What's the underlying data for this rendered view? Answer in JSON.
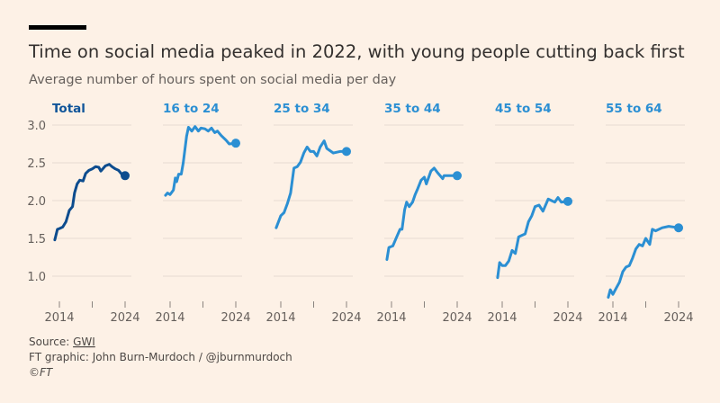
{
  "title": "Time on social media peaked in 2022, with young people cutting back first",
  "subtitle": "Average number of hours spent on social media per day",
  "footer": {
    "source_label": "Source: ",
    "source_link": "GWI",
    "credit": "FT graphic: John Burn-Murdoch / @jburnmurdoch",
    "copyright": "©FT"
  },
  "colors": {
    "background": "#fdf1e6",
    "total": "#0d4c8e",
    "age_groups": "#2b8fd3",
    "grid": "#e6dcd2",
    "title_bar": "#000000"
  },
  "chart_data": {
    "type": "line",
    "layout": "small-multiples",
    "ylim": [
      0.7,
      3.0
    ],
    "yticks": [
      "1.0",
      "1.5",
      "2.0",
      "2.5",
      "3.0"
    ],
    "ytick_values": [
      1.0,
      1.5,
      2.0,
      2.5,
      3.0
    ],
    "xticks": [
      "2014",
      "2024"
    ],
    "xtick_values": [
      2014,
      2019,
      2024
    ],
    "grid": true,
    "end_marker": "dot",
    "series": [
      {
        "name": "Total",
        "color": "#0d4c8e",
        "points": [
          [
            2013.3,
            1.48
          ],
          [
            2013.7,
            1.62
          ],
          [
            2014,
            1.63
          ],
          [
            2014.5,
            1.65
          ],
          [
            2015,
            1.72
          ],
          [
            2015.5,
            1.87
          ],
          [
            2016,
            1.92
          ],
          [
            2016.3,
            2.1
          ],
          [
            2016.7,
            2.22
          ],
          [
            2017.1,
            2.27
          ],
          [
            2017.6,
            2.26
          ],
          [
            2018,
            2.36
          ],
          [
            2018.5,
            2.4
          ],
          [
            2019,
            2.42
          ],
          [
            2019.5,
            2.45
          ],
          [
            2020,
            2.44
          ],
          [
            2020.3,
            2.39
          ],
          [
            2021,
            2.46
          ],
          [
            2021.6,
            2.48
          ],
          [
            2022,
            2.45
          ],
          [
            2022.5,
            2.42
          ],
          [
            2023,
            2.4
          ],
          [
            2023.5,
            2.35
          ],
          [
            2024,
            2.33
          ]
        ]
      },
      {
        "name": "16 to 24",
        "color": "#2b8fd3",
        "points": [
          [
            2013.3,
            2.07
          ],
          [
            2013.6,
            2.1
          ],
          [
            2014,
            2.08
          ],
          [
            2014.5,
            2.14
          ],
          [
            2014.8,
            2.3
          ],
          [
            2015,
            2.25
          ],
          [
            2015.3,
            2.35
          ],
          [
            2015.7,
            2.35
          ],
          [
            2016,
            2.5
          ],
          [
            2016.5,
            2.85
          ],
          [
            2016.8,
            2.97
          ],
          [
            2017.3,
            2.92
          ],
          [
            2017.8,
            2.98
          ],
          [
            2018.3,
            2.92
          ],
          [
            2018.7,
            2.96
          ],
          [
            2019.3,
            2.95
          ],
          [
            2019.8,
            2.92
          ],
          [
            2020.3,
            2.96
          ],
          [
            2020.8,
            2.9
          ],
          [
            2021.2,
            2.92
          ],
          [
            2021.8,
            2.86
          ],
          [
            2022.5,
            2.8
          ],
          [
            2023,
            2.75
          ],
          [
            2024,
            2.76
          ]
        ]
      },
      {
        "name": "25 to 34",
        "color": "#2b8fd3",
        "points": [
          [
            2013.3,
            1.64
          ],
          [
            2014,
            1.8
          ],
          [
            2014.5,
            1.84
          ],
          [
            2015,
            1.96
          ],
          [
            2015.5,
            2.1
          ],
          [
            2016,
            2.43
          ],
          [
            2016.5,
            2.45
          ],
          [
            2017,
            2.51
          ],
          [
            2017.5,
            2.63
          ],
          [
            2018,
            2.71
          ],
          [
            2018.5,
            2.65
          ],
          [
            2019,
            2.65
          ],
          [
            2019.5,
            2.59
          ],
          [
            2020,
            2.71
          ],
          [
            2020.6,
            2.79
          ],
          [
            2021,
            2.69
          ],
          [
            2022,
            2.63
          ],
          [
            2023,
            2.65
          ],
          [
            2024,
            2.65
          ]
        ]
      },
      {
        "name": "35 to 44",
        "color": "#2b8fd3",
        "points": [
          [
            2013.3,
            1.22
          ],
          [
            2013.6,
            1.38
          ],
          [
            2014.2,
            1.4
          ],
          [
            2014.8,
            1.52
          ],
          [
            2015.3,
            1.62
          ],
          [
            2015.6,
            1.62
          ],
          [
            2016,
            1.88
          ],
          [
            2016.3,
            1.98
          ],
          [
            2016.7,
            1.92
          ],
          [
            2017.2,
            1.98
          ],
          [
            2017.6,
            2.08
          ],
          [
            2018,
            2.16
          ],
          [
            2018.5,
            2.27
          ],
          [
            2019,
            2.31
          ],
          [
            2019.3,
            2.22
          ],
          [
            2020,
            2.39
          ],
          [
            2020.5,
            2.43
          ],
          [
            2021,
            2.37
          ],
          [
            2021.8,
            2.29
          ],
          [
            2022,
            2.33
          ],
          [
            2024,
            2.33
          ]
        ]
      },
      {
        "name": "45 to 54",
        "color": "#2b8fd3",
        "points": [
          [
            2013.3,
            0.98
          ],
          [
            2013.6,
            1.18
          ],
          [
            2014,
            1.14
          ],
          [
            2014.5,
            1.14
          ],
          [
            2015,
            1.2
          ],
          [
            2015.5,
            1.34
          ],
          [
            2016,
            1.3
          ],
          [
            2016.5,
            1.52
          ],
          [
            2017,
            1.54
          ],
          [
            2017.5,
            1.56
          ],
          [
            2018,
            1.72
          ],
          [
            2018.5,
            1.8
          ],
          [
            2019,
            1.92
          ],
          [
            2019.6,
            1.94
          ],
          [
            2020.2,
            1.86
          ],
          [
            2021,
            2.02
          ],
          [
            2021.5,
            2.0
          ],
          [
            2022,
            1.98
          ],
          [
            2022.5,
            2.04
          ],
          [
            2023,
            1.98
          ],
          [
            2024,
            1.99
          ]
        ]
      },
      {
        "name": "55 to 64",
        "color": "#2b8fd3",
        "points": [
          [
            2013.3,
            0.72
          ],
          [
            2013.6,
            0.82
          ],
          [
            2014,
            0.76
          ],
          [
            2014.5,
            0.84
          ],
          [
            2015,
            0.92
          ],
          [
            2015.5,
            1.06
          ],
          [
            2016,
            1.12
          ],
          [
            2016.5,
            1.14
          ],
          [
            2017,
            1.24
          ],
          [
            2017.5,
            1.36
          ],
          [
            2018,
            1.42
          ],
          [
            2018.5,
            1.4
          ],
          [
            2019,
            1.5
          ],
          [
            2019.6,
            1.42
          ],
          [
            2020,
            1.62
          ],
          [
            2020.5,
            1.6
          ],
          [
            2021.5,
            1.64
          ],
          [
            2022.5,
            1.66
          ],
          [
            2024,
            1.64
          ]
        ]
      }
    ]
  }
}
